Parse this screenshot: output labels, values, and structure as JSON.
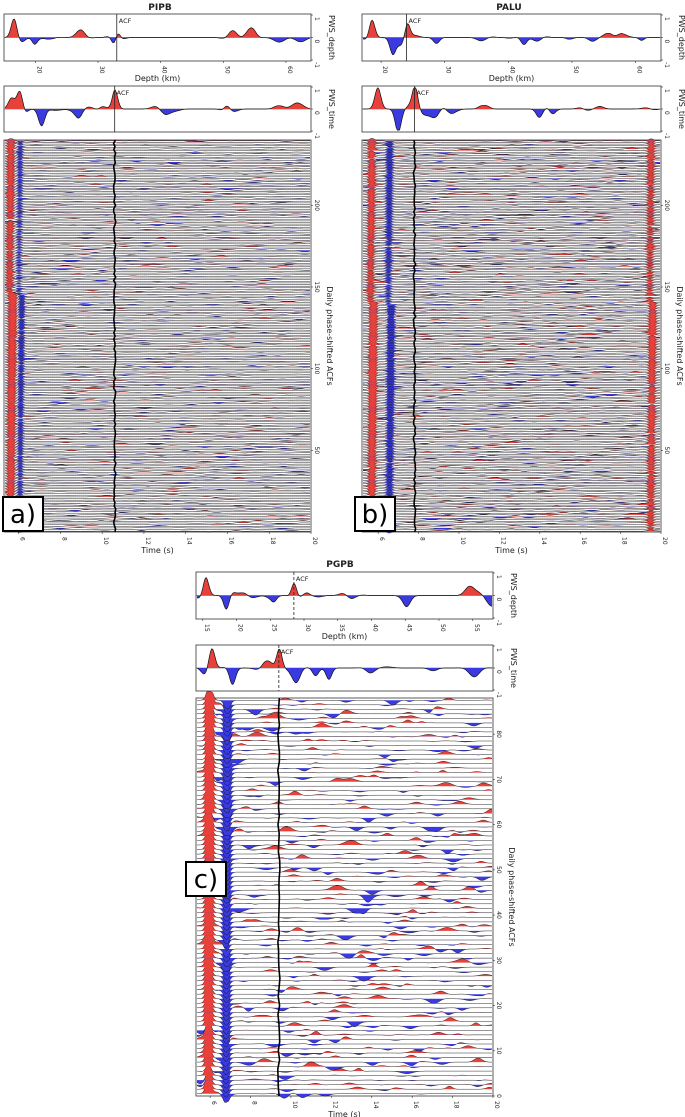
{
  "chart_data": [
    {
      "type": "line",
      "panel_label": "a)",
      "title": "PIPB",
      "depth_plot": {
        "ylabel": "PWS_depth",
        "xlabel": "Depth (km)",
        "x_ticks": [
          "20",
          "30",
          "40",
          "50",
          "60"
        ],
        "x_range": [
          15,
          64
        ],
        "y_ticks": [
          "1",
          "0",
          "-1"
        ],
        "ylim": [
          -1,
          1
        ],
        "acf_label": "ACF",
        "acf_depth": 33
      },
      "time_plot": {
        "ylabel": "PWS_time",
        "y_ticks": [
          "1",
          "0",
          "-1"
        ],
        "ylim": [
          -1,
          1
        ],
        "acf_label": "ACF",
        "acf_time": 10.6
      },
      "traces_plot": {
        "ylabel": "Daily phase-shifted ACFs",
        "xlabel": "Time (s)",
        "x_ticks": [
          "6",
          "8",
          "10",
          "12",
          "14",
          "16",
          "18",
          "20"
        ],
        "x_range": [
          5.3,
          20
        ],
        "y_ticks": [
          "50",
          "100",
          "150",
          "200"
        ],
        "y_range": [
          0,
          240
        ],
        "trace_count": 240,
        "picked_time": 10.6
      }
    },
    {
      "type": "line",
      "panel_label": "b)",
      "title": "PALU",
      "depth_plot": {
        "ylabel": "PWS_depth",
        "xlabel": "Depth (km)",
        "x_ticks": [
          "20",
          "30",
          "40",
          "50",
          "60"
        ],
        "x_range": [
          17,
          64
        ],
        "y_ticks": [
          "1",
          "0",
          "-1"
        ],
        "ylim": [
          -1,
          1
        ],
        "acf_label": "ACF",
        "acf_depth": 24
      },
      "time_plot": {
        "ylabel": "PWS_time",
        "y_ticks": [
          "1",
          "0",
          "-1"
        ],
        "ylim": [
          -1,
          1
        ],
        "acf_label": "ACF",
        "acf_time": 7.8
      },
      "traces_plot": {
        "ylabel": "Daily phase-shifted ACFs",
        "xlabel": "Time (s)",
        "x_ticks": [
          "6",
          "8",
          "10",
          "12",
          "14",
          "16",
          "18",
          "20"
        ],
        "x_range": [
          5.2,
          20
        ],
        "y_ticks": [
          "50",
          "100",
          "150",
          "200"
        ],
        "y_range": [
          0,
          240
        ],
        "trace_count": 240,
        "picked_time": 7.8
      }
    },
    {
      "type": "line",
      "panel_label": "c)",
      "title": "PGPB",
      "depth_plot": {
        "ylabel": "PWS_depth",
        "xlabel": "Depth (km)",
        "x_ticks": [
          "15",
          "20",
          "25",
          "30",
          "35",
          "40",
          "45",
          "50",
          "55"
        ],
        "x_range": [
          14,
          58
        ],
        "y_ticks": [
          "1",
          "0",
          "-1"
        ],
        "ylim": [
          -1,
          1
        ],
        "acf_label": "ACF",
        "acf_depth": 28.5
      },
      "time_plot": {
        "ylabel": "PWS_time",
        "y_ticks": [
          "1",
          "0",
          "-1"
        ],
        "ylim": [
          -1,
          1
        ],
        "acf_label": "ACF",
        "acf_time": 9.4
      },
      "traces_plot": {
        "ylabel": "Daily phase-shifted ACFs",
        "xlabel": "Time (s)",
        "x_ticks": [
          "6",
          "8",
          "10",
          "12",
          "14",
          "16",
          "18",
          "20"
        ],
        "x_range": [
          5.3,
          20
        ],
        "y_ticks": [
          "0",
          "10",
          "20",
          "30",
          "40",
          "50",
          "60",
          "70",
          "80"
        ],
        "y_range": [
          0,
          88
        ],
        "trace_count": 88,
        "picked_time": 9.4
      }
    }
  ]
}
